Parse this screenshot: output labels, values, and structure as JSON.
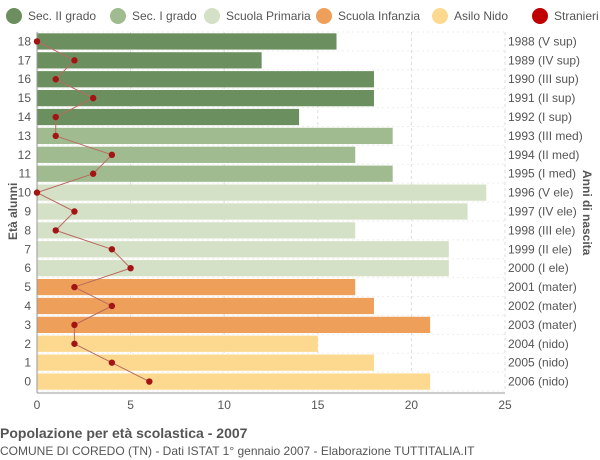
{
  "legend": {
    "items": [
      {
        "label": "Sec. II grado",
        "color": "#6b8f5e"
      },
      {
        "label": "Sec. I grado",
        "color": "#9fbb8f"
      },
      {
        "label": "Scuola Primaria",
        "color": "#d5e1c6"
      },
      {
        "label": "Scuola Infanzia",
        "color": "#eea05a"
      },
      {
        "label": "Asilo Nido",
        "color": "#fdd98f"
      },
      {
        "label": "Stranieri",
        "color": "#c00000"
      }
    ]
  },
  "caption": {
    "title": "Popolazione per età scolastica - 2007",
    "subtitle": "COMUNE DI COREDO (TN) - Dati ISTAT 1° gennaio 2007 - Elaborazione TUTTITALIA.IT"
  },
  "chart_data": {
    "type": "bar",
    "orientation": "horizontal",
    "ylabel": "Età alunni",
    "ylabel_right": "Anni di nascita",
    "xlim": [
      0,
      25
    ],
    "x_ticks": [
      0,
      5,
      10,
      15,
      20,
      25
    ],
    "grid": true,
    "categories": [
      "18",
      "17",
      "16",
      "15",
      "14",
      "13",
      "12",
      "11",
      "10",
      "9",
      "8",
      "7",
      "6",
      "5",
      "4",
      "3",
      "2",
      "1",
      "0"
    ],
    "birth_years": [
      "1988 (V sup)",
      "1989 (IV sup)",
      "1990 (III sup)",
      "1991 (II sup)",
      "1992 (I sup)",
      "1993 (III med)",
      "1994 (II med)",
      "1995 (I med)",
      "1996 (V ele)",
      "1997 (IV ele)",
      "1998 (III ele)",
      "1999 (II ele)",
      "2000 (I ele)",
      "2001 (mater)",
      "2002 (mater)",
      "2003 (mater)",
      "2004 (nido)",
      "2005 (nido)",
      "2006 (nido)"
    ],
    "values": [
      16,
      12,
      18,
      18,
      14,
      19,
      17,
      19,
      24,
      23,
      17,
      22,
      22,
      17,
      18,
      21,
      15,
      18,
      21
    ],
    "groups": [
      "Sec. II grado",
      "Sec. II grado",
      "Sec. II grado",
      "Sec. II grado",
      "Sec. II grado",
      "Sec. I grado",
      "Sec. I grado",
      "Sec. I grado",
      "Scuola Primaria",
      "Scuola Primaria",
      "Scuola Primaria",
      "Scuola Primaria",
      "Scuola Primaria",
      "Scuola Infanzia",
      "Scuola Infanzia",
      "Scuola Infanzia",
      "Asilo Nido",
      "Asilo Nido",
      "Asilo Nido"
    ],
    "stranieri": [
      0,
      2,
      1,
      3,
      1,
      1,
      4,
      3,
      0,
      2,
      1,
      4,
      5,
      2,
      4,
      2,
      2,
      4,
      6
    ]
  }
}
